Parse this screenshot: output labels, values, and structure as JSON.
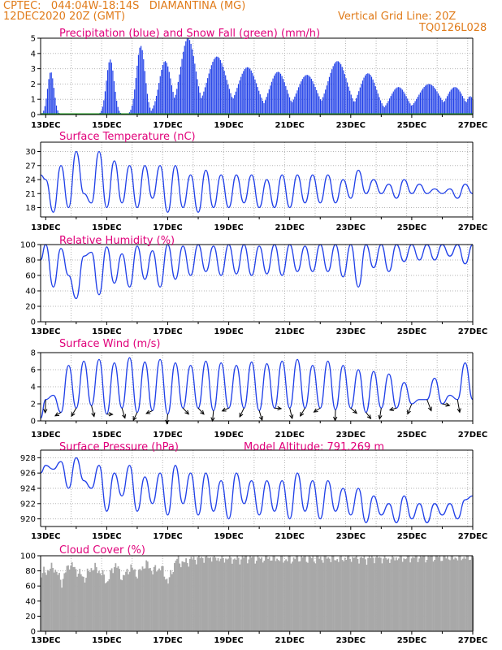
{
  "header": {
    "line1": "CPTEC:   044:04W-18:14S   DIAMANTINA (MG)",
    "line2": "12DEC2020 20Z (GMT)",
    "vgrid": "Vertical Grid Line: 20Z",
    "code": "TQ0126L028"
  },
  "colors": {
    "header": "#e07b1a",
    "title": "#e0007a",
    "line": "#1f3fe8",
    "snow": "#1a9a1a",
    "cloud": "#a8a8a8",
    "grid": "#b5b5b5"
  },
  "time": {
    "start_day": 12.833,
    "end_day": 27.0,
    "date_labels": [
      "13DEC",
      "15DEC",
      "17DEC",
      "19DEC",
      "21DEC",
      "23DEC",
      "25DEC",
      "27DEC"
    ]
  },
  "chart_data": [
    {
      "id": "precip",
      "type": "bar",
      "title": "Precipitation (blue) and Snow Fall (green) (mm/h)",
      "ylim": [
        0,
        5
      ],
      "yticks": [
        0,
        1,
        2,
        3,
        4,
        5
      ],
      "grid": true,
      "series": [
        {
          "name": "Precipitation",
          "color": "blue",
          "events": [
            [
              13.15,
              2.8,
              0.15
            ],
            [
              15.1,
              3.6,
              0.18
            ],
            [
              16.1,
              4.5,
              0.2
            ],
            [
              16.9,
              3.5,
              0.28
            ],
            [
              17.65,
              5,
              0.35
            ],
            [
              18.6,
              3.8,
              0.45
            ],
            [
              19.6,
              3.1,
              0.45
            ],
            [
              20.6,
              2.8,
              0.4
            ],
            [
              21.55,
              2.6,
              0.45
            ],
            [
              22.55,
              3.5,
              0.45
            ],
            [
              23.55,
              2.7,
              0.4
            ],
            [
              24.55,
              1.8,
              0.4
            ],
            [
              25.55,
              2.0,
              0.5
            ],
            [
              26.4,
              1.8,
              0.4
            ],
            [
              26.9,
              1.2,
              0.2
            ]
          ]
        },
        {
          "name": "Snow Fall",
          "color": "green",
          "values": "zero"
        }
      ]
    },
    {
      "id": "temp",
      "type": "line",
      "title": "Surface Temperature (nC)",
      "ylim": [
        16,
        32
      ],
      "yticks": [
        18,
        21,
        24,
        27,
        30
      ],
      "grid": true,
      "x": [
        12.83,
        13.0,
        13.25,
        13.5,
        13.75,
        14.0,
        14.25,
        14.5,
        14.75,
        15.0,
        15.25,
        15.5,
        15.75,
        16.0,
        16.25,
        16.5,
        16.75,
        17.0,
        17.25,
        17.5,
        17.75,
        18.0,
        18.25,
        18.5,
        18.75,
        19.0,
        19.25,
        19.5,
        19.75,
        20.0,
        20.25,
        20.5,
        20.75,
        21.0,
        21.25,
        21.5,
        21.75,
        22.0,
        22.25,
        22.5,
        22.75,
        23.0,
        23.25,
        23.5,
        23.75,
        24.0,
        24.25,
        24.5,
        24.75,
        25.0,
        25.25,
        25.5,
        25.75,
        26.0,
        26.25,
        26.5,
        26.75,
        27.0
      ],
      "values": [
        25,
        24,
        17,
        27,
        18,
        30,
        21,
        19,
        30,
        18,
        28,
        19,
        27,
        18,
        27,
        20,
        27,
        17,
        27,
        18,
        25,
        17,
        26,
        18,
        25,
        18,
        25,
        19,
        25,
        18,
        24,
        18,
        25,
        18,
        25,
        19,
        25,
        19,
        25,
        19,
        24,
        20,
        26,
        21,
        24,
        21,
        23,
        20,
        24,
        21,
        23,
        21,
        22,
        21,
        22,
        20,
        23,
        21
      ]
    },
    {
      "id": "rh",
      "type": "line",
      "title": "Relative Humidity (%)",
      "ylim": [
        0,
        100
      ],
      "yticks": [
        0,
        20,
        40,
        60,
        80,
        100
      ],
      "grid": true,
      "x": [
        12.83,
        13.0,
        13.25,
        13.5,
        13.75,
        14.0,
        14.25,
        14.5,
        14.75,
        15.0,
        15.25,
        15.5,
        15.75,
        16.0,
        16.25,
        16.5,
        16.75,
        17.0,
        17.25,
        17.5,
        17.75,
        18.0,
        18.25,
        18.5,
        18.75,
        19.0,
        19.25,
        19.5,
        19.75,
        20.0,
        20.25,
        20.5,
        20.75,
        21.0,
        21.25,
        21.5,
        21.75,
        22.0,
        22.25,
        22.5,
        22.75,
        23.0,
        23.25,
        23.5,
        23.75,
        24.0,
        24.25,
        24.5,
        24.75,
        25.0,
        25.25,
        25.5,
        25.75,
        26.0,
        26.25,
        26.5,
        26.75,
        27.0
      ],
      "values": [
        80,
        100,
        45,
        95,
        60,
        30,
        85,
        90,
        35,
        97,
        50,
        88,
        45,
        98,
        55,
        92,
        45,
        100,
        55,
        98,
        60,
        100,
        65,
        98,
        60,
        100,
        62,
        100,
        60,
        98,
        62,
        100,
        60,
        100,
        65,
        98,
        65,
        100,
        65,
        100,
        58,
        100,
        45,
        100,
        70,
        100,
        65,
        100,
        78,
        100,
        80,
        100,
        80,
        100,
        85,
        100,
        75,
        100
      ]
    },
    {
      "id": "wind",
      "type": "line",
      "title": "Surface Wind (m/s)",
      "ylim": [
        0,
        8
      ],
      "yticks": [
        0,
        2,
        4,
        6,
        8
      ],
      "grid": true,
      "x": [
        12.83,
        13.0,
        13.25,
        13.5,
        13.75,
        14.0,
        14.25,
        14.5,
        14.75,
        15.0,
        15.25,
        15.5,
        15.75,
        16.0,
        16.25,
        16.5,
        16.75,
        17.0,
        17.25,
        17.5,
        17.75,
        18.0,
        18.25,
        18.5,
        18.75,
        19.0,
        19.25,
        19.5,
        19.75,
        20.0,
        20.25,
        20.5,
        20.75,
        21.0,
        21.25,
        21.5,
        21.75,
        22.0,
        22.25,
        22.5,
        22.75,
        23.0,
        23.25,
        23.5,
        23.75,
        24.0,
        24.25,
        24.5,
        24.75,
        25.0,
        25.25,
        25.5,
        25.75,
        26.0,
        26.25,
        26.5,
        26.75,
        27.0
      ],
      "values": [
        0.3,
        2.5,
        3.0,
        1.0,
        6.5,
        1.5,
        7.0,
        1.8,
        7.2,
        0.8,
        6.8,
        1.5,
        7.4,
        1.0,
        6.9,
        1.2,
        7.2,
        0.8,
        6.8,
        1.5,
        6.5,
        1.5,
        7.0,
        1.2,
        6.8,
        1.5,
        6.5,
        1.5,
        6.9,
        1.2,
        6.7,
        1.5,
        7.0,
        1.5,
        7.2,
        1.5,
        6.5,
        1.5,
        7.0,
        1.3,
        6.5,
        1.5,
        6.0,
        1.0,
        5.8,
        1.5,
        5.5,
        1.5,
        4.5,
        2.0,
        2.5,
        2.5,
        5.0,
        2.0,
        3.0,
        2.5,
        6.8,
        2.5
      ]
    },
    {
      "id": "pres",
      "type": "line",
      "title": "Surface Pressure (hPa)",
      "subtitle": "Model Altitude: 791.269  m",
      "ylim": [
        919,
        929
      ],
      "yticks": [
        920,
        922,
        924,
        926,
        928
      ],
      "grid": true,
      "x": [
        12.83,
        13.0,
        13.25,
        13.5,
        13.75,
        14.0,
        14.25,
        14.5,
        14.75,
        15.0,
        15.25,
        15.5,
        15.75,
        16.0,
        16.25,
        16.5,
        16.75,
        17.0,
        17.25,
        17.5,
        17.75,
        18.0,
        18.25,
        18.5,
        18.75,
        19.0,
        19.25,
        19.5,
        19.75,
        20.0,
        20.25,
        20.5,
        20.75,
        21.0,
        21.25,
        21.5,
        21.75,
        22.0,
        22.25,
        22.5,
        22.75,
        23.0,
        23.25,
        23.5,
        23.75,
        24.0,
        24.25,
        24.5,
        24.75,
        25.0,
        25.25,
        25.5,
        25.75,
        26.0,
        26.25,
        26.5,
        26.75,
        27.0
      ],
      "values": [
        926,
        927,
        926.5,
        927.5,
        924,
        928,
        925,
        924,
        927,
        921,
        926,
        923,
        927,
        921,
        925.5,
        922,
        926,
        920.5,
        927,
        922,
        926,
        920.5,
        926,
        921,
        925,
        920,
        926,
        922,
        925,
        920.5,
        925,
        921,
        925,
        920,
        926,
        921,
        925,
        920,
        925,
        921,
        924,
        920.5,
        924,
        919.5,
        923,
        920.5,
        922,
        919.5,
        923,
        920,
        922,
        919.5,
        922,
        920.5,
        922,
        920,
        922.5,
        923
      ]
    },
    {
      "id": "cloud",
      "type": "bar",
      "title": "Cloud Cover (%)",
      "ylim": [
        0,
        100
      ],
      "yticks": [
        0,
        20,
        40,
        60,
        80,
        100
      ],
      "grid": true,
      "x": [
        12.83,
        13.0,
        13.25,
        13.5,
        13.75,
        14.0,
        14.25,
        14.5,
        14.75,
        15.0,
        15.25,
        15.5,
        15.75,
        16.0,
        16.25,
        16.5,
        16.75,
        17.0,
        17.25,
        17.5,
        17.75,
        18.0,
        18.25,
        18.5,
        18.75,
        19.0,
        19.25,
        19.5,
        19.75,
        20.0,
        20.25,
        20.5,
        20.75,
        21.0,
        21.25,
        21.5,
        21.75,
        22.0,
        22.25,
        22.5,
        22.75,
        23.0,
        23.25,
        23.5,
        23.75,
        24.0,
        24.25,
        24.5,
        24.75,
        25.0,
        25.25,
        25.5,
        25.75,
        26.0,
        26.25,
        26.5,
        26.75,
        27.0
      ],
      "values": [
        75,
        80,
        85,
        65,
        90,
        80,
        70,
        85,
        80,
        65,
        90,
        70,
        85,
        75,
        90,
        80,
        85,
        65,
        95,
        90,
        95,
        97,
        98,
        98,
        96,
        97,
        95,
        98,
        97,
        96,
        98,
        97,
        96,
        95,
        98,
        97,
        96,
        97,
        98,
        96,
        97,
        98,
        97,
        96,
        98,
        97,
        96,
        98,
        97,
        98,
        99,
        98,
        99,
        98,
        99,
        98,
        99,
        99
      ]
    }
  ]
}
